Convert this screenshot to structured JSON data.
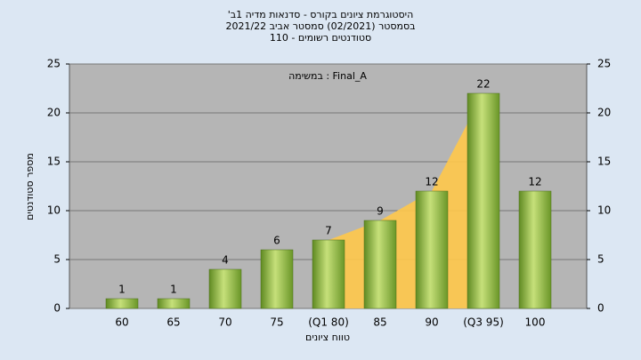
{
  "chart_data": {
    "type": "bar",
    "title": [
      "היסטוגרמת ציונים בקורס - סדנאות מדיה 1ב'",
      "בסמסטר (02/2021) סמסטר אביב 2021/22",
      "סטודנטים רשומים - 110"
    ],
    "annotation": "במשימה : Final_A",
    "xlabel": "טווח ציונים",
    "ylabel": "מספר סטודנטים",
    "categories": [
      "60",
      "65",
      "70",
      "75",
      "(Q1 80)",
      "85",
      "90",
      "(Q3 95)",
      "100"
    ],
    "values": [
      1,
      1,
      4,
      6,
      7,
      9,
      12,
      22,
      12
    ],
    "color": "#8fbf3f",
    "highlight_color": "#ffc84a",
    "ylim": [
      0,
      25
    ],
    "yticks": [
      0,
      5,
      10,
      15,
      20,
      25
    ],
    "y2lim": [
      0,
      25
    ],
    "y2ticks": [
      0,
      5,
      10,
      15,
      20,
      25
    ],
    "grid": true
  }
}
